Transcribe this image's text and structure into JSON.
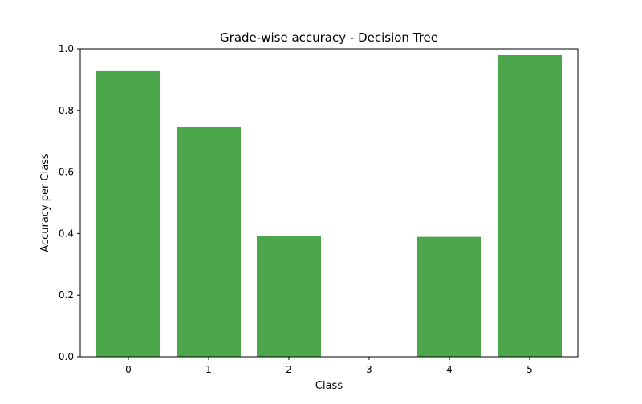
{
  "chart_data": {
    "type": "bar",
    "title": "Grade-wise accuracy - Decision Tree",
    "xlabel": "Class",
    "ylabel": "Accuracy per Class",
    "categories": [
      "0",
      "1",
      "2",
      "3",
      "4",
      "5"
    ],
    "values": [
      0.93,
      0.745,
      0.392,
      0.0,
      0.389,
      0.98
    ],
    "ylim": [
      0.0,
      1.0
    ],
    "yticks": [
      "0.0",
      "0.2",
      "0.4",
      "0.6",
      "0.8",
      "1.0"
    ],
    "bar_color": "#4ca64c",
    "grid": false,
    "legend": "none"
  }
}
